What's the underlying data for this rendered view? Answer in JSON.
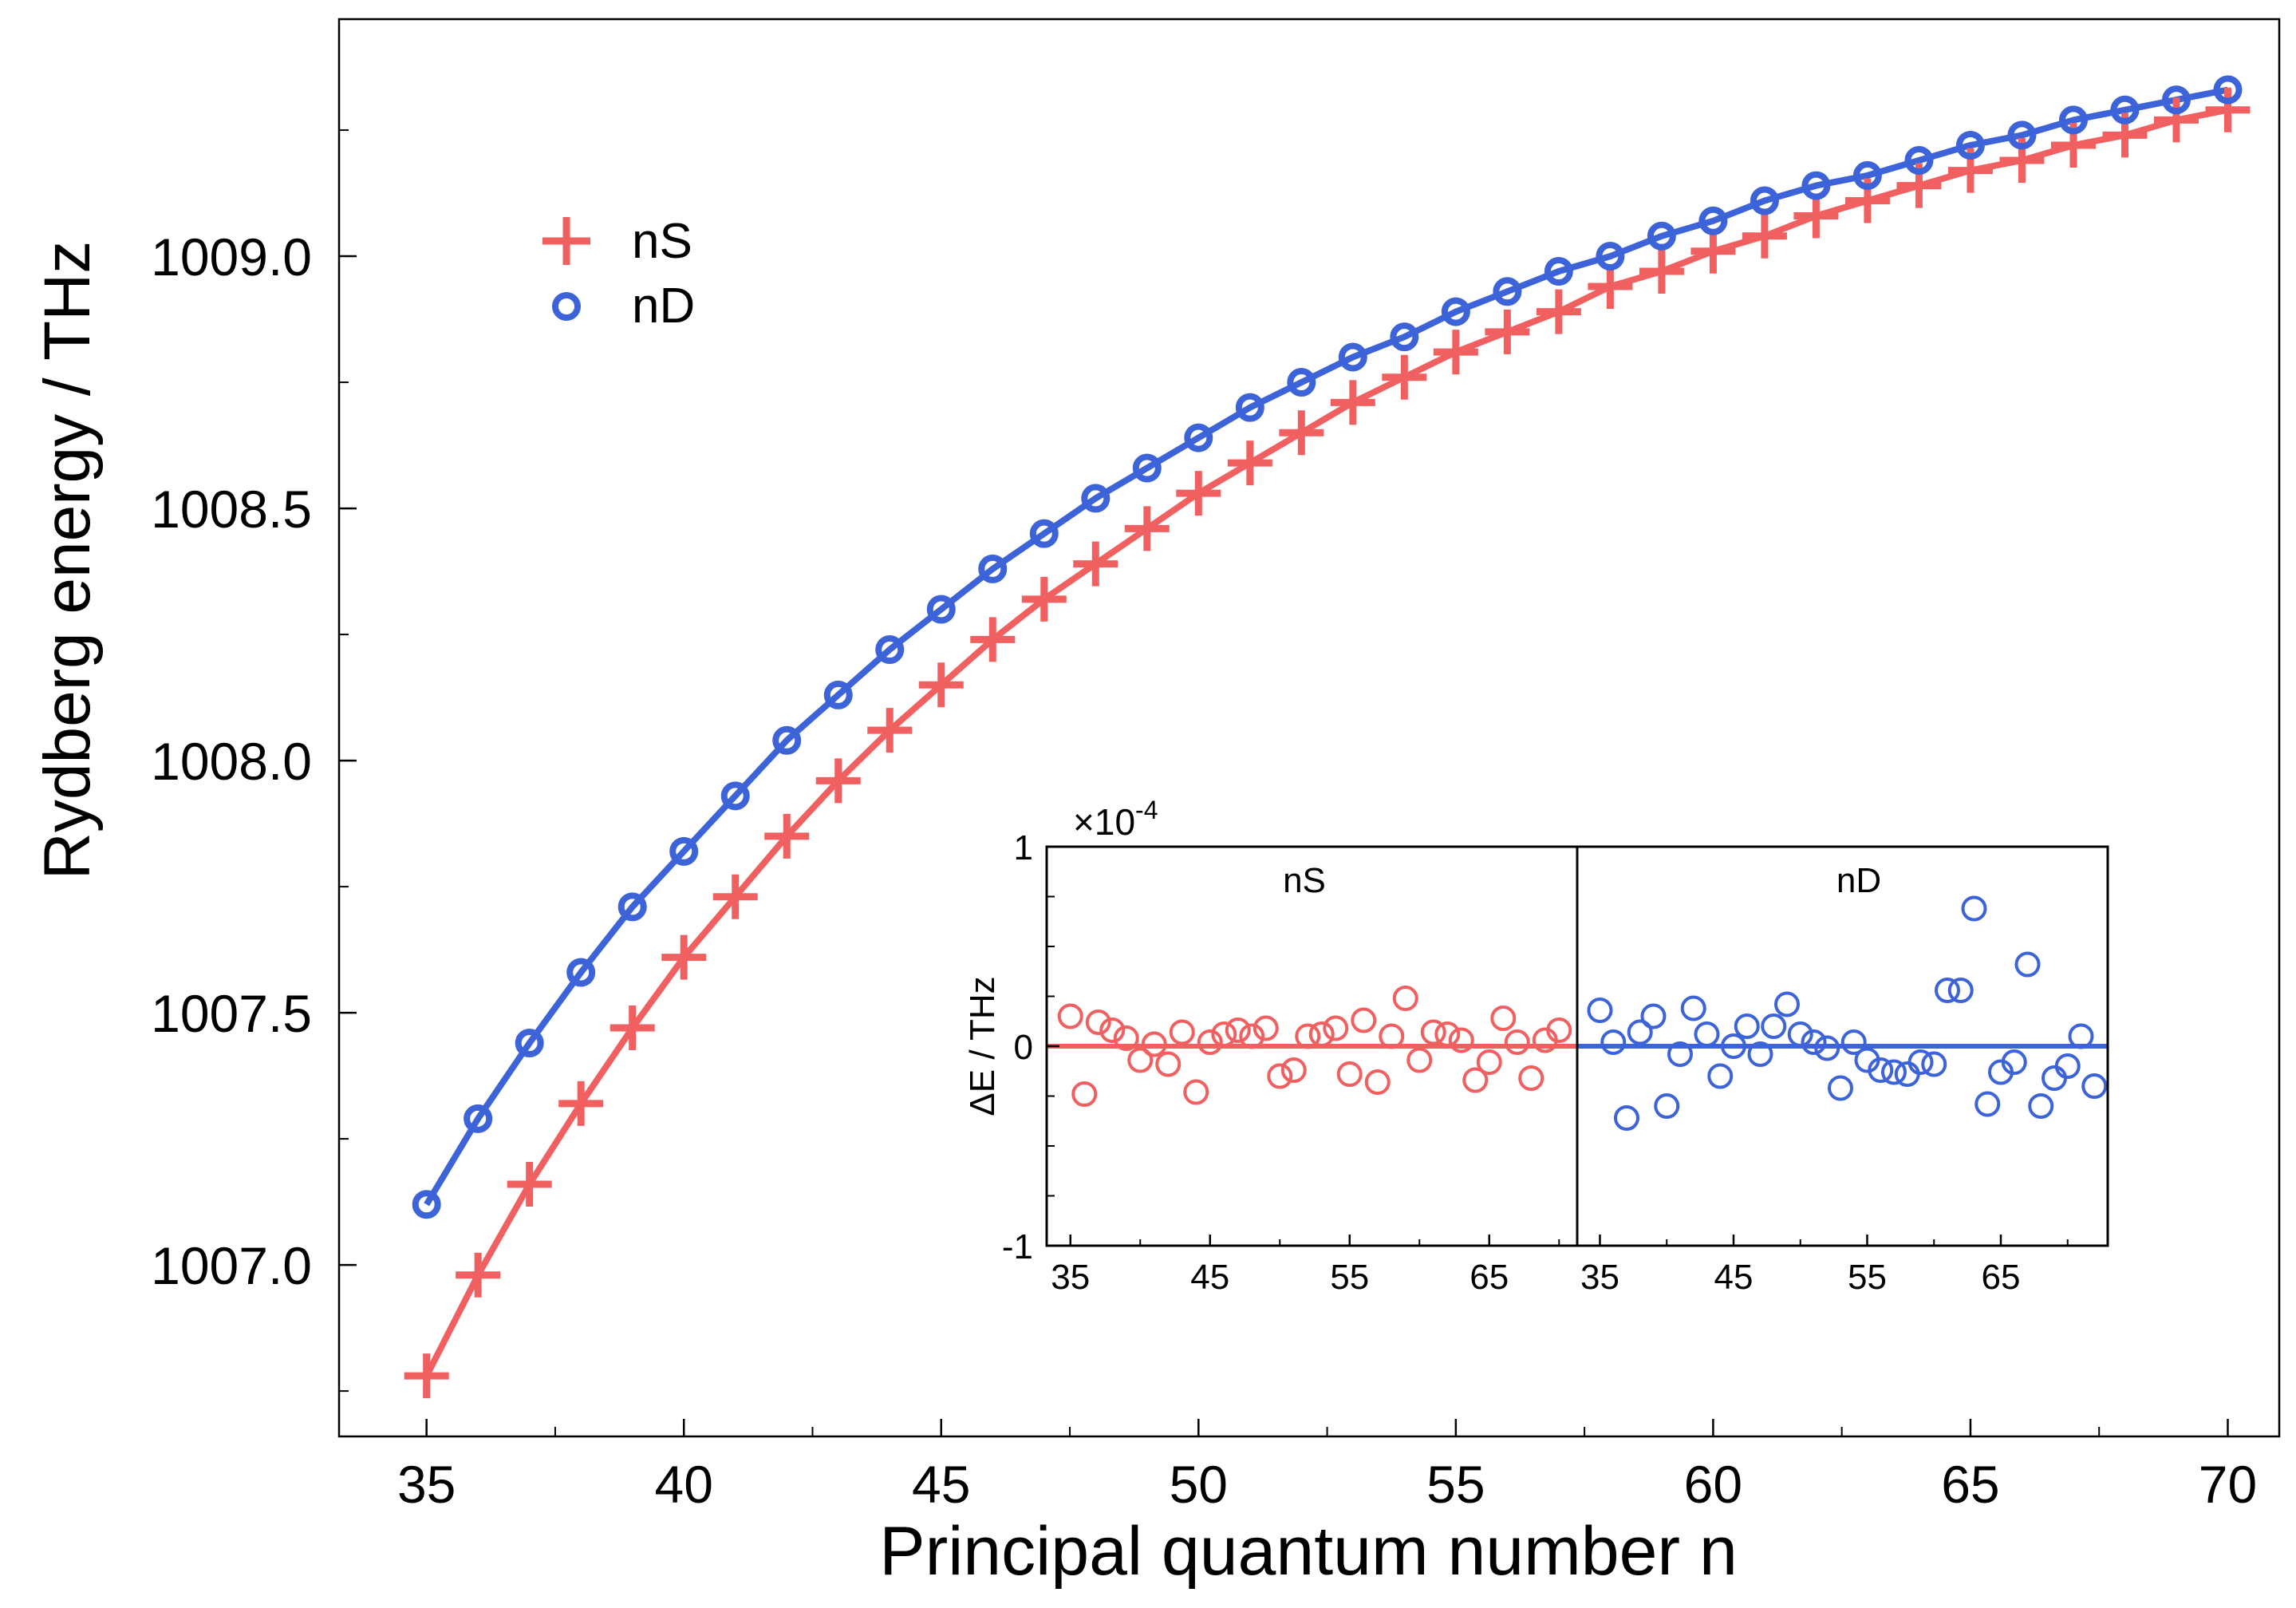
{
  "chart_data": [
    {
      "type": "scatter",
      "xlabel": "Principal quantum number n",
      "ylabel": "Rydberg energy / THz",
      "xlim": [
        33.3,
        71.0
      ],
      "ylim": [
        1006.66,
        1009.47
      ],
      "xticks": [
        "35",
        "40",
        "45",
        "50",
        "55",
        "60",
        "65",
        "70"
      ],
      "xtick_values": [
        35,
        40,
        45,
        50,
        55,
        60,
        65,
        70
      ],
      "yticks": [
        "1007.0",
        "1007.5",
        "1008.0",
        "1008.5",
        "1009.0"
      ],
      "ytick_values": [
        1007.0,
        1007.5,
        1008.0,
        1008.5,
        1009.0
      ],
      "legend": {
        "position": "top-left",
        "entries": [
          "nS",
          "nD"
        ]
      },
      "series": [
        {
          "name": "nS",
          "marker": "plus",
          "color": "#f06060",
          "x": [
            35,
            36,
            37,
            38,
            39,
            40,
            41,
            42,
            43,
            44,
            45,
            46,
            47,
            48,
            49,
            50,
            51,
            52,
            53,
            54,
            55,
            56,
            57,
            58,
            59,
            60,
            61,
            62,
            63,
            64,
            65,
            66,
            67,
            68,
            69,
            70
          ],
          "y": [
            1006.78,
            1006.98,
            1007.16,
            1007.32,
            1007.47,
            1007.61,
            1007.73,
            1007.85,
            1007.96,
            1008.06,
            1008.15,
            1008.24,
            1008.32,
            1008.39,
            1008.46,
            1008.53,
            1008.59,
            1008.65,
            1008.71,
            1008.76,
            1008.81,
            1008.85,
            1008.89,
            1008.94,
            1008.97,
            1009.01,
            1009.04,
            1009.08,
            1009.11,
            1009.14,
            1009.17,
            1009.19,
            1009.22,
            1009.24,
            1009.27,
            1009.29
          ]
        },
        {
          "name": "nD",
          "marker": "circle",
          "color": "#3c63d8",
          "x": [
            35,
            36,
            37,
            38,
            39,
            40,
            41,
            42,
            43,
            44,
            45,
            46,
            47,
            48,
            49,
            50,
            51,
            52,
            53,
            54,
            55,
            56,
            57,
            58,
            59,
            60,
            61,
            62,
            63,
            64,
            65,
            66,
            67,
            68,
            69,
            70
          ],
          "y": [
            1007.12,
            1007.29,
            1007.44,
            1007.58,
            1007.71,
            1007.82,
            1007.93,
            1008.04,
            1008.13,
            1008.22,
            1008.3,
            1008.38,
            1008.45,
            1008.52,
            1008.58,
            1008.64,
            1008.7,
            1008.75,
            1008.8,
            1008.84,
            1008.89,
            1008.93,
            1008.97,
            1009.0,
            1009.04,
            1009.07,
            1009.11,
            1009.14,
            1009.16,
            1009.19,
            1009.22,
            1009.24,
            1009.27,
            1009.29,
            1009.31,
            1009.33
          ]
        }
      ]
    },
    {
      "type": "scatter",
      "inset": true,
      "ylabel": "ΔE / THz",
      "multiplier_label": "×10",
      "multiplier_exponent": "-4",
      "ylim": [
        -1,
        1
      ],
      "yticks": [
        "1",
        "0",
        "-1"
      ],
      "ytick_values": [
        1,
        0,
        -1
      ],
      "panels": [
        {
          "name": "nS",
          "color": "#f06060",
          "xlim": [
            33.3,
            71.3
          ],
          "xticks": [
            "35",
            "45",
            "55",
            "65"
          ],
          "xtick_values": [
            35,
            45,
            55,
            65
          ],
          "x": [
            35,
            36,
            37,
            38,
            39,
            40,
            41,
            42,
            43,
            44,
            45,
            46,
            47,
            48,
            49,
            50,
            51,
            52,
            53,
            54,
            55,
            56,
            57,
            58,
            59,
            60,
            61,
            62,
            63,
            64,
            65,
            66,
            67,
            68,
            69,
            70
          ],
          "y": [
            0.15,
            -0.24,
            0.12,
            0.08,
            0.04,
            -0.07,
            0.01,
            -0.09,
            0.07,
            -0.23,
            0.02,
            0.06,
            0.08,
            0.05,
            0.09,
            -0.15,
            -0.12,
            0.05,
            0.06,
            0.09,
            -0.14,
            0.13,
            -0.18,
            0.05,
            0.24,
            -0.07,
            0.07,
            0.06,
            0.03,
            -0.17,
            -0.08,
            0.14,
            0.02,
            -0.16,
            0.03,
            0.08
          ]
        },
        {
          "name": "nD",
          "color": "#3c63d8",
          "xlim": [
            33.3,
            73.0
          ],
          "xticks": [
            "35",
            "45",
            "55",
            "65"
          ],
          "xtick_values": [
            35,
            45,
            55,
            65
          ],
          "x": [
            35,
            36,
            37,
            38,
            39,
            40,
            41,
            42,
            43,
            44,
            45,
            46,
            47,
            48,
            49,
            50,
            51,
            52,
            53,
            54,
            55,
            56,
            57,
            58,
            59,
            60,
            61,
            62,
            63,
            64,
            65,
            66,
            67,
            68,
            69,
            70,
            71,
            72
          ],
          "y": [
            0.18,
            0.02,
            -0.36,
            0.07,
            0.15,
            -0.3,
            -0.04,
            0.19,
            0.06,
            -0.15,
            0.0,
            0.1,
            -0.04,
            0.1,
            0.21,
            0.06,
            0.02,
            -0.01,
            -0.21,
            0.02,
            -0.07,
            -0.12,
            -0.13,
            -0.14,
            -0.08,
            -0.09,
            0.28,
            0.28,
            0.69,
            -0.29,
            -0.13,
            -0.08,
            0.41,
            -0.3,
            -0.16,
            -0.1,
            0.05,
            -0.2
          ]
        }
      ]
    }
  ]
}
